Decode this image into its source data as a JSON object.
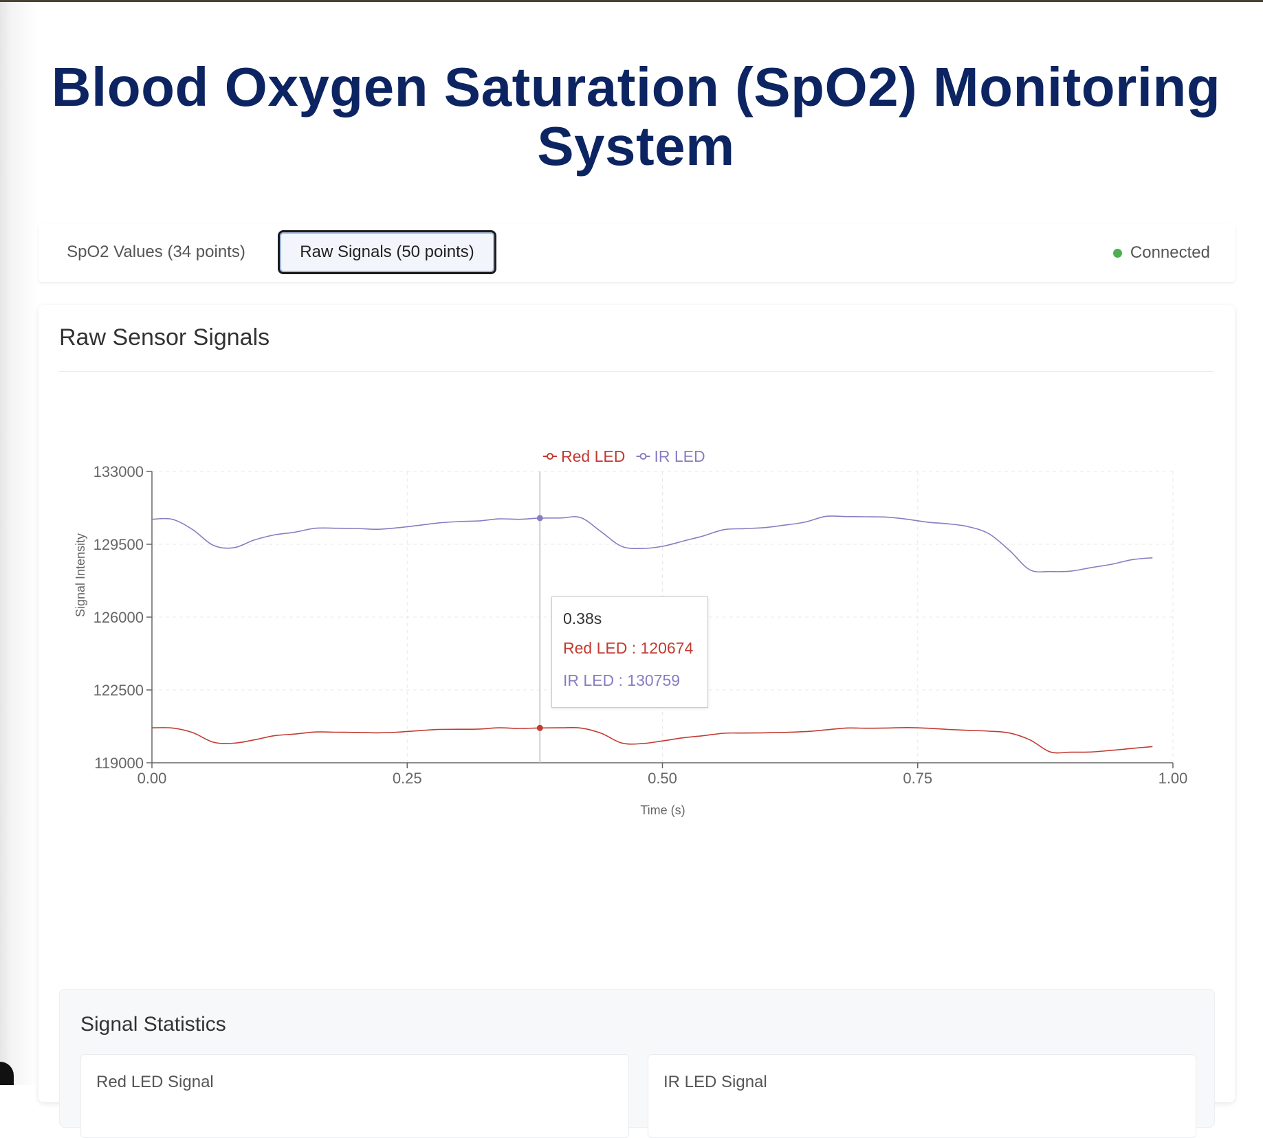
{
  "page": {
    "title": "Blood Oxygen Saturation (SpO2) Monitoring System"
  },
  "tabs": [
    {
      "label": "SpO2 Values (34 points)",
      "active": false
    },
    {
      "label": "Raw Signals (50 points)",
      "active": true
    }
  ],
  "status": {
    "label": "Connected",
    "color": "#4caf50"
  },
  "card": {
    "title": "Raw Sensor Signals"
  },
  "tooltip": {
    "time": "0.38s",
    "red": "Red LED : 120674",
    "ir": "IR LED : 130759"
  },
  "stats": {
    "title": "Signal Statistics",
    "red_label": "Red LED Signal",
    "ir_label": "IR LED Signal"
  },
  "colors": {
    "red": "#c23b31",
    "ir": "#8a7cc2",
    "title": "#0c2461"
  },
  "chart_data": {
    "type": "line",
    "xlabel": "Time (s)",
    "ylabel": "Signal Intensity",
    "xlim": [
      0,
      1
    ],
    "ylim": [
      119000,
      133000
    ],
    "x_ticks": [
      "0.00",
      "0.25",
      "0.50",
      "0.75",
      "1.00"
    ],
    "y_ticks": [
      "133000",
      "129500",
      "126000",
      "122500",
      "119000"
    ],
    "grid": true,
    "legend": "top-center",
    "highlight_x": 0.38,
    "series": [
      {
        "name": "Red LED",
        "color": "#c23b31",
        "x": [
          0.0,
          0.02,
          0.04,
          0.06,
          0.08,
          0.1,
          0.12,
          0.14,
          0.16,
          0.18,
          0.2,
          0.22,
          0.24,
          0.26,
          0.28,
          0.3,
          0.32,
          0.34,
          0.36,
          0.38,
          0.4,
          0.42,
          0.44,
          0.46,
          0.48,
          0.5,
          0.52,
          0.54,
          0.56,
          0.58,
          0.6,
          0.62,
          0.64,
          0.66,
          0.68,
          0.7,
          0.72,
          0.74,
          0.76,
          0.78,
          0.8,
          0.82,
          0.84,
          0.86,
          0.88,
          0.9,
          0.92,
          0.94,
          0.96,
          0.98
        ],
        "values": [
          120680,
          120670,
          120450,
          119990,
          119940,
          120100,
          120300,
          120380,
          120480,
          120470,
          120460,
          120440,
          120470,
          120540,
          120600,
          120610,
          120620,
          120680,
          120650,
          120674,
          120680,
          120670,
          120420,
          119950,
          119920,
          120050,
          120200,
          120300,
          120420,
          120430,
          120440,
          120460,
          120500,
          120580,
          120670,
          120660,
          120670,
          120690,
          120660,
          120600,
          120560,
          120520,
          120430,
          120100,
          119520,
          119510,
          119520,
          119600,
          119690,
          119780
        ]
      },
      {
        "name": "IR LED",
        "color": "#8a7cc2",
        "x": [
          0.0,
          0.02,
          0.04,
          0.06,
          0.08,
          0.1,
          0.12,
          0.14,
          0.16,
          0.18,
          0.2,
          0.22,
          0.24,
          0.26,
          0.28,
          0.3,
          0.32,
          0.34,
          0.36,
          0.38,
          0.4,
          0.42,
          0.44,
          0.46,
          0.48,
          0.5,
          0.52,
          0.54,
          0.56,
          0.58,
          0.6,
          0.62,
          0.64,
          0.66,
          0.68,
          0.7,
          0.72,
          0.74,
          0.76,
          0.78,
          0.8,
          0.82,
          0.84,
          0.86,
          0.88,
          0.9,
          0.92,
          0.94,
          0.96,
          0.98
        ],
        "values": [
          130700,
          130700,
          130200,
          129450,
          129330,
          129700,
          129950,
          130080,
          130270,
          130270,
          130260,
          130220,
          130290,
          130400,
          130520,
          130590,
          130620,
          130720,
          130700,
          130759,
          130760,
          130780,
          130100,
          129400,
          129300,
          129400,
          129650,
          129900,
          130200,
          130250,
          130300,
          130420,
          130570,
          130840,
          130830,
          130820,
          130800,
          130700,
          130560,
          130480,
          130340,
          130000,
          129200,
          128270,
          128190,
          128210,
          128380,
          128540,
          128760,
          128850
        ]
      }
    ]
  }
}
